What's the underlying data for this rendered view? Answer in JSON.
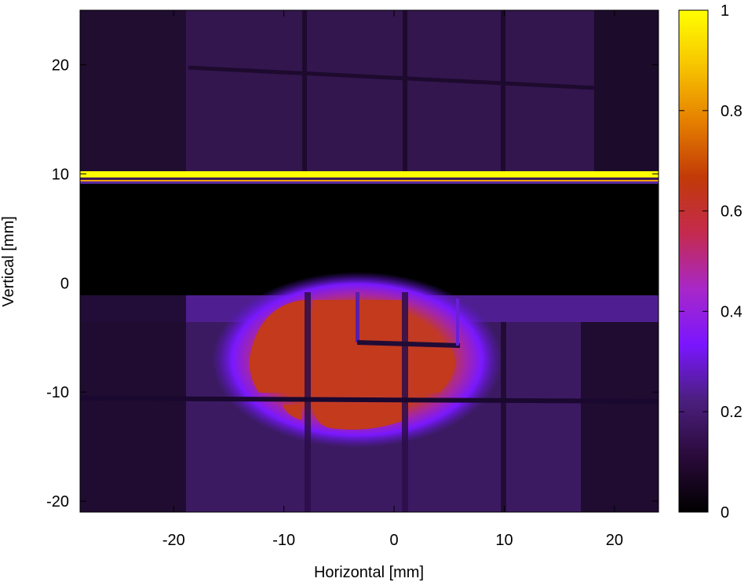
{
  "chart_data": {
    "type": "heatmap",
    "title": "",
    "xlabel": "Horizontal [mm]",
    "ylabel": "Vertical [mm]",
    "xlim": [
      -28.5,
      24
    ],
    "ylim": [
      -21,
      25
    ],
    "xticks": [
      -20,
      -10,
      0,
      10,
      20
    ],
    "xtick_labels": [
      "-20",
      "-10",
      "0",
      "10",
      "20"
    ],
    "yticks": [
      -20,
      -10,
      0,
      10,
      20
    ],
    "ytick_labels": [
      "-20",
      "-10",
      "0",
      "10",
      "20"
    ],
    "colorbar": {
      "range": [
        0,
        1
      ],
      "ticks": [
        0,
        0.2,
        0.4,
        0.6,
        0.8,
        1
      ],
      "tick_labels": [
        "0",
        "0.2",
        "0.4",
        "0.6",
        "0.8",
        "1"
      ],
      "colormap": "gnuplot-hot",
      "stops": [
        "#000000",
        "#2a0a3a",
        "#4b1f7e",
        "#7a16ff",
        "#a828c8",
        "#c42a4e",
        "#c23a08",
        "#e57f00",
        "#f7c400",
        "#ffff00"
      ]
    },
    "regions": [
      {
        "name": "upper-background",
        "x": [
          -28.5,
          24
        ],
        "y": [
          10.2,
          25
        ],
        "value": 0.09
      },
      {
        "name": "saturated-band",
        "x": [
          -28.5,
          24
        ],
        "y": [
          9.6,
          10.1
        ],
        "value": 1.0
      },
      {
        "name": "dark-gap",
        "x": [
          -28.5,
          24
        ],
        "y": [
          -1.0,
          9.0
        ],
        "value": 0.0
      },
      {
        "name": "lower-background",
        "x": [
          -28.5,
          24
        ],
        "y": [
          -21,
          -1.1
        ],
        "value": 0.1
      },
      {
        "name": "beam-spot",
        "center": [
          -5,
          -7
        ],
        "extent": [
          -16,
          7,
          -14,
          -1
        ],
        "peak_value": 0.5
      }
    ]
  }
}
